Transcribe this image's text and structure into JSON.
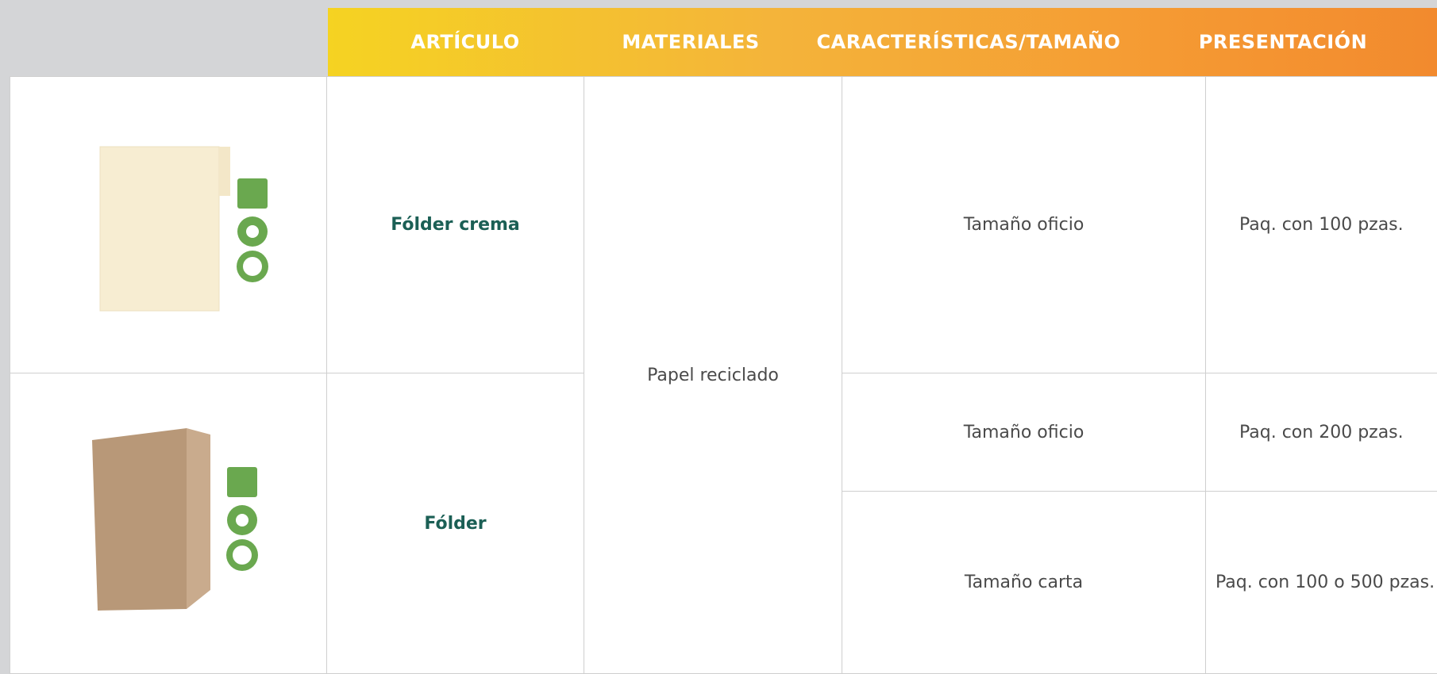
{
  "table": {
    "headers": [
      "ARTÍCULO",
      "MATERIALES",
      "CARACTERÍSTICAS/TAMAÑO",
      "PRESENTACIÓN"
    ],
    "material": "Papel reciclado",
    "rows": [
      {
        "article": "Fólder crema",
        "sizes": [
          {
            "size": "Tamaño oficio",
            "presentation": "Paq. con 100 pzas."
          }
        ]
      },
      {
        "article": "Fólder",
        "sizes": [
          {
            "size": "Tamaño oficio",
            "presentation": "Paq. con 200 pzas."
          },
          {
            "size": "Tamaño carta",
            "presentation": "Paq. con 100 o 500 pzas."
          }
        ]
      }
    ]
  }
}
